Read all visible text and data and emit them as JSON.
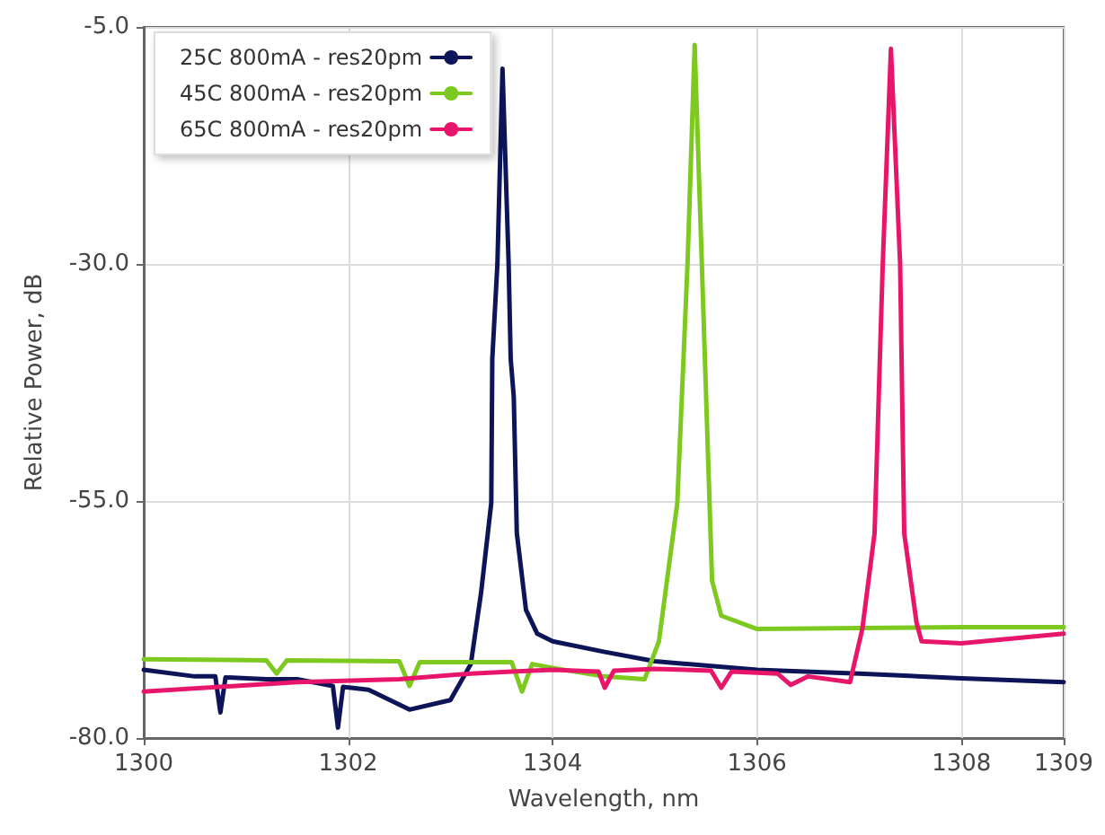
{
  "chart_data": {
    "type": "line",
    "xlabel": "Wavelength, nm",
    "ylabel": "Relative Power, dB",
    "xlim": [
      1300,
      1309
    ],
    "xticks": [
      1300,
      1302,
      1304,
      1306,
      1308,
      1309
    ],
    "ylim": [
      -80,
      -5
    ],
    "yticks": [
      {
        "value": -80,
        "label": "-80.0"
      },
      {
        "value": -55,
        "label": "-55.0"
      },
      {
        "value": -30,
        "label": "-30.0"
      },
      {
        "value": -5,
        "label": "-5.0"
      }
    ],
    "grid": true,
    "legend": "top left",
    "marker": "none",
    "line_style": "solid",
    "series": [
      {
        "name": "25C 800mA - res20pm",
        "color": "#0d1457",
        "x": [
          1300,
          1300.5,
          1300.7,
          1300.75,
          1300.8,
          1301.2,
          1301.5,
          1301.85,
          1301.9,
          1301.95,
          1302.2,
          1302.6,
          1303.0,
          1303.2,
          1303.3,
          1303.4,
          1303.41,
          1303.46,
          1303.51,
          1303.57,
          1303.59,
          1303.62,
          1303.65,
          1303.74,
          1303.85,
          1304,
          1304.5,
          1305,
          1306,
          1307,
          1308,
          1309
        ],
        "values": [
          -72.8,
          -73.5,
          -73.5,
          -77.3,
          -73.6,
          -73.8,
          -73.8,
          -74.5,
          -78.9,
          -74.6,
          -74.9,
          -77,
          -76,
          -72.2,
          -64.7,
          -55.2,
          -40,
          -30,
          -9.4,
          -30,
          -40,
          -44,
          -58.4,
          -66.5,
          -69,
          -69.8,
          -70.9,
          -71.9,
          -72.8,
          -73.2,
          -73.7,
          -74.1
        ]
      },
      {
        "name": "45C 800mA - res20pm",
        "color": "#7dc91f",
        "x": [
          1300,
          1301.2,
          1301.3,
          1301.4,
          1302.5,
          1302.6,
          1302.7,
          1303.6,
          1303.7,
          1303.8,
          1304,
          1304.5,
          1304.9,
          1305.04,
          1305.22,
          1305.32,
          1305.39,
          1305.46,
          1305.56,
          1305.65,
          1306,
          1307,
          1308,
          1309
        ],
        "values": [
          -71.7,
          -71.8,
          -73.2,
          -71.8,
          -71.9,
          -74.5,
          -72,
          -72,
          -75.1,
          -72.2,
          -72.6,
          -73.5,
          -73.8,
          -69.8,
          -55.2,
          -30,
          -6.9,
          -30,
          -63.4,
          -67.1,
          -68.5,
          -68.4,
          -68.3,
          -68.3
        ]
      },
      {
        "name": "65C 800mA - res20pm",
        "color": "#e8166b",
        "x": [
          1300,
          1301.5,
          1302.5,
          1303.2,
          1303.6,
          1304,
          1304.45,
          1304.51,
          1304.6,
          1305,
          1305.55,
          1305.65,
          1305.75,
          1306.2,
          1306.33,
          1306.5,
          1306.91,
          1307.03,
          1307.15,
          1307.23,
          1307.31,
          1307.4,
          1307.44,
          1307.56,
          1307.61,
          1308,
          1309
        ],
        "values": [
          -75.1,
          -74.1,
          -73.8,
          -73.2,
          -73,
          -72.8,
          -73,
          -74.7,
          -72.9,
          -72.7,
          -72.9,
          -74.7,
          -73,
          -73.2,
          -74.4,
          -73.5,
          -74.1,
          -68.5,
          -58.4,
          -30,
          -7.3,
          -30,
          -58.4,
          -67.8,
          -69.8,
          -70,
          -69
        ]
      }
    ]
  }
}
